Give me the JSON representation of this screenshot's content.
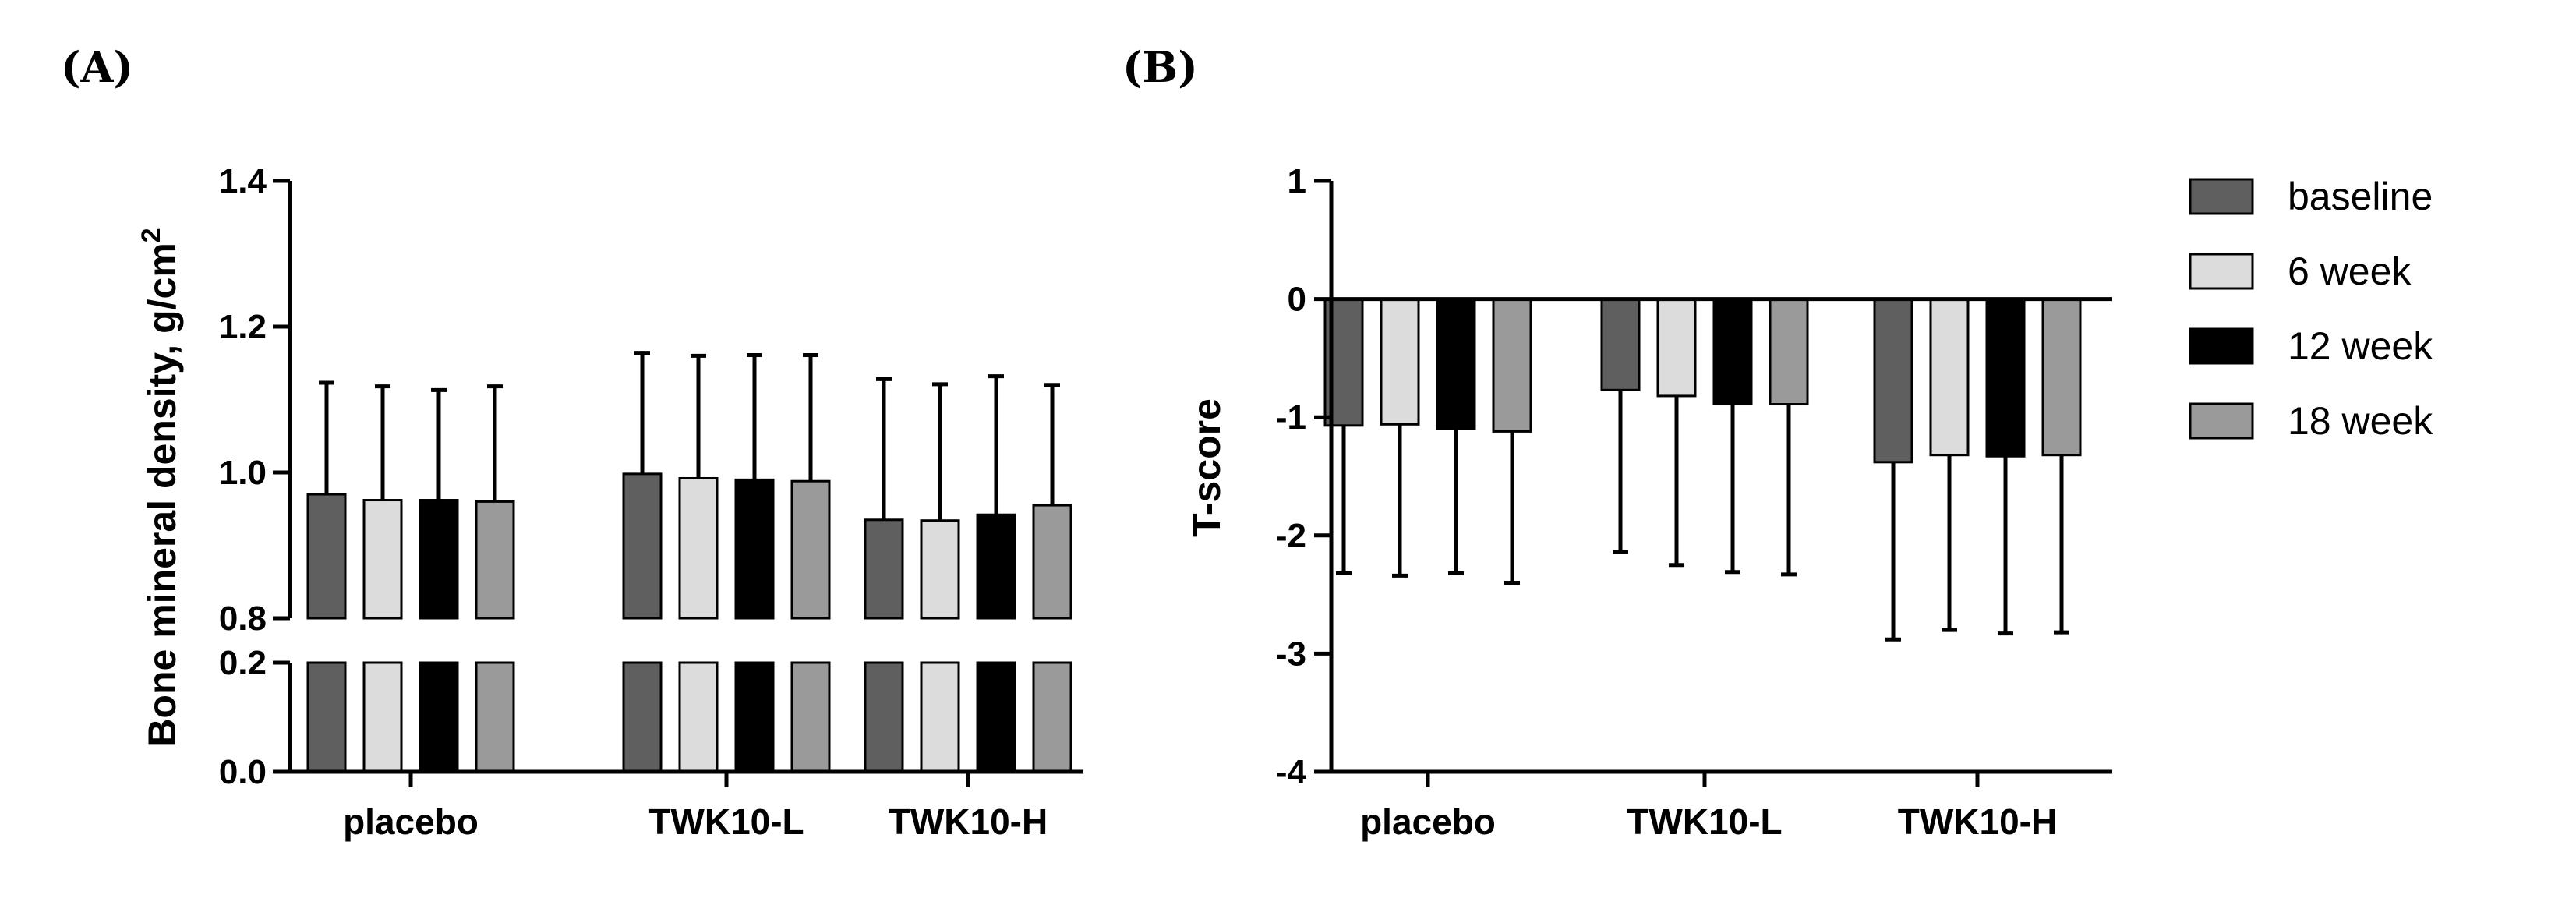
{
  "chart_data": [
    {
      "panel": "(A)",
      "type": "bar",
      "ylabel": "Bone mineral density, g/cm",
      "ylabel_superscript": "2",
      "categories": [
        "placebo",
        "TWK10-L",
        "TWK10-H"
      ],
      "axis_break": {
        "lower": [
          0.0,
          0.2
        ],
        "upper": [
          0.8,
          1.4
        ]
      },
      "yticks_lower": [
        "0.0",
        "0.2"
      ],
      "yticks_upper": [
        "0.8",
        "1.0",
        "1.2",
        "1.4"
      ],
      "series": [
        {
          "name": "baseline",
          "values": [
            0.97,
            0.998,
            0.935
          ],
          "errors": [
            0.153,
            0.166,
            0.193
          ]
        },
        {
          "name": "6 week",
          "values": [
            0.962,
            0.992,
            0.934
          ],
          "errors": [
            0.156,
            0.168,
            0.187
          ]
        },
        {
          "name": "12 week",
          "values": [
            0.962,
            0.99,
            0.942
          ],
          "errors": [
            0.151,
            0.171,
            0.19
          ]
        },
        {
          "name": "18 week",
          "values": [
            0.96,
            0.988,
            0.955
          ],
          "errors": [
            0.158,
            0.173,
            0.165
          ]
        }
      ]
    },
    {
      "panel": "(B)",
      "type": "bar",
      "ylabel": "T-score",
      "categories": [
        "placebo",
        "TWK10-L",
        "TWK10-H"
      ],
      "ylim": [
        -4,
        1
      ],
      "yticks": [
        "1",
        "0",
        "-1",
        "-2",
        "-3",
        "-4"
      ],
      "legend_position": "right",
      "series": [
        {
          "name": "baseline",
          "values": [
            -1.07,
            -0.77,
            -1.38
          ],
          "errors": [
            1.25,
            1.37,
            1.5
          ]
        },
        {
          "name": "6 week",
          "values": [
            -1.06,
            -0.82,
            -1.32
          ],
          "errors": [
            1.28,
            1.43,
            1.48
          ]
        },
        {
          "name": "12 week",
          "values": [
            -1.1,
            -0.89,
            -1.33
          ],
          "errors": [
            1.22,
            1.42,
            1.5
          ]
        },
        {
          "name": "18 week",
          "values": [
            -1.12,
            -0.89,
            -1.32
          ],
          "errors": [
            1.28,
            1.44,
            1.5
          ]
        }
      ]
    }
  ],
  "legend": {
    "entries": [
      "baseline",
      "6 week",
      "12 week",
      "18 week"
    ]
  },
  "colors": {
    "baseline": "#5f5f5f",
    "6 week": "#dcdcdc",
    "12 week": "#000000",
    "18 week": "#9a9a9a",
    "outline": "#000000"
  }
}
